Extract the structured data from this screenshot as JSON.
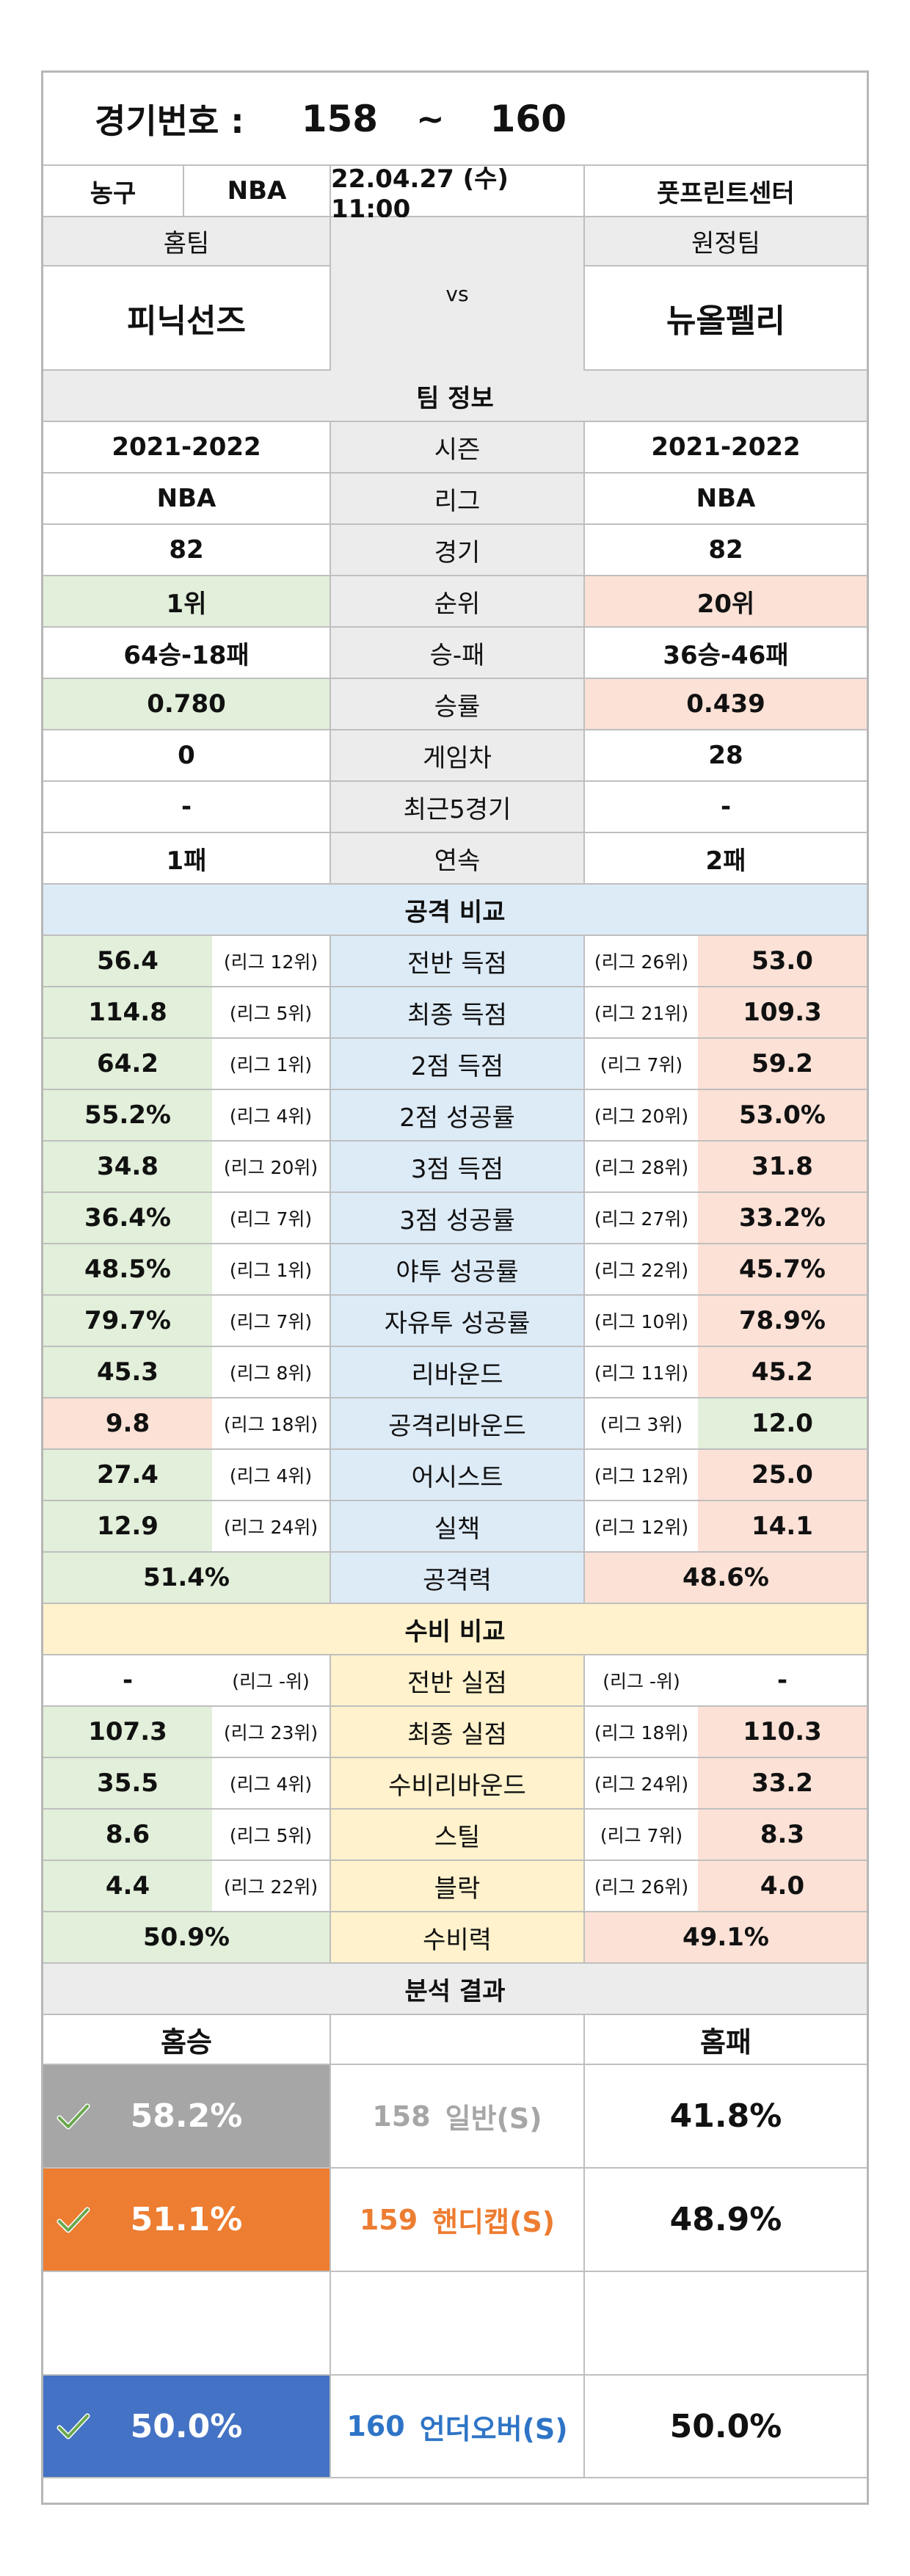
{
  "header": {
    "match_label": "경기번호 :",
    "match_from": "158",
    "match_sep": "~",
    "match_to": "160"
  },
  "info": {
    "sport": "농구",
    "league": "NBA",
    "datetime": "22.04.27 (수) 11:00",
    "venue": "풋프린트센터"
  },
  "teams": {
    "home_label": "홈팀",
    "away_label": "원정팀",
    "home_name": "피닉선즈",
    "away_name": "뉴올펠리",
    "vs": "vs"
  },
  "team_info": {
    "title": "팀 정보",
    "rows": [
      {
        "home": "2021-2022",
        "label": "시즌",
        "away": "2021-2022"
      },
      {
        "home": "NBA",
        "label": "리그",
        "away": "NBA"
      },
      {
        "home": "82",
        "label": "경기",
        "away": "82"
      },
      {
        "home": "1위",
        "label": "순위",
        "away": "20위",
        "home_status": "good",
        "away_status": "bad"
      },
      {
        "home": "64승-18패",
        "label": "승-패",
        "away": "36승-46패"
      },
      {
        "home": "0.780",
        "label": "승률",
        "away": "0.439",
        "home_status": "good",
        "away_status": "bad"
      },
      {
        "home": "0",
        "label": "게임차",
        "away": "28"
      },
      {
        "home": "-",
        "label": "최근5경기",
        "away": "-"
      },
      {
        "home": "1패",
        "label": "연속",
        "away": "2패"
      }
    ]
  },
  "attack": {
    "title": "공격 비교",
    "rows": [
      {
        "home": "56.4",
        "home_rank": "(리그 12위)",
        "label": "전반 득점",
        "away_rank": "(리그 26위)",
        "away": "53.0",
        "home_status": "good",
        "away_status": "bad"
      },
      {
        "home": "114.8",
        "home_rank": "(리그 5위)",
        "label": "최종 득점",
        "away_rank": "(리그 21위)",
        "away": "109.3",
        "home_status": "good",
        "away_status": "bad"
      },
      {
        "home": "64.2",
        "home_rank": "(리그 1위)",
        "label": "2점 득점",
        "away_rank": "(리그 7위)",
        "away": "59.2",
        "home_status": "good",
        "away_status": "bad"
      },
      {
        "home": "55.2%",
        "home_rank": "(리그 4위)",
        "label": "2점 성공률",
        "away_rank": "(리그 20위)",
        "away": "53.0%",
        "home_status": "good",
        "away_status": "bad"
      },
      {
        "home": "34.8",
        "home_rank": "(리그 20위)",
        "label": "3점 득점",
        "away_rank": "(리그 28위)",
        "away": "31.8",
        "home_status": "good",
        "away_status": "bad"
      },
      {
        "home": "36.4%",
        "home_rank": "(리그 7위)",
        "label": "3점 성공률",
        "away_rank": "(리그 27위)",
        "away": "33.2%",
        "home_status": "good",
        "away_status": "bad"
      },
      {
        "home": "48.5%",
        "home_rank": "(리그 1위)",
        "label": "야투 성공률",
        "away_rank": "(리그 22위)",
        "away": "45.7%",
        "home_status": "good",
        "away_status": "bad"
      },
      {
        "home": "79.7%",
        "home_rank": "(리그 7위)",
        "label": "자유투 성공률",
        "away_rank": "(리그 10위)",
        "away": "78.9%",
        "home_status": "good",
        "away_status": "bad"
      },
      {
        "home": "45.3",
        "home_rank": "(리그 8위)",
        "label": "리바운드",
        "away_rank": "(리그 11위)",
        "away": "45.2",
        "home_status": "good",
        "away_status": "bad"
      },
      {
        "home": "9.8",
        "home_rank": "(리그 18위)",
        "label": "공격리바운드",
        "away_rank": "(리그 3위)",
        "away": "12.0",
        "home_status": "bad",
        "away_status": "good"
      },
      {
        "home": "27.4",
        "home_rank": "(리그 4위)",
        "label": "어시스트",
        "away_rank": "(리그 12위)",
        "away": "25.0",
        "home_status": "good",
        "away_status": "bad"
      },
      {
        "home": "12.9",
        "home_rank": "(리그 24위)",
        "label": "실책",
        "away_rank": "(리그 12위)",
        "away": "14.1",
        "home_status": "good",
        "away_status": "bad"
      }
    ],
    "total": {
      "home": "51.4%",
      "label": "공격력",
      "away": "48.6%",
      "home_status": "good",
      "away_status": "bad"
    }
  },
  "defense": {
    "title": "수비 비교",
    "rows": [
      {
        "home": "-",
        "home_rank": "(리그 -위)",
        "label": "전반 실점",
        "away_rank": "(리그 -위)",
        "away": "-",
        "home_status": "none",
        "away_status": "none"
      },
      {
        "home": "107.3",
        "home_rank": "(리그 23위)",
        "label": "최종 실점",
        "away_rank": "(리그 18위)",
        "away": "110.3",
        "home_status": "good",
        "away_status": "bad"
      },
      {
        "home": "35.5",
        "home_rank": "(리그 4위)",
        "label": "수비리바운드",
        "away_rank": "(리그 24위)",
        "away": "33.2",
        "home_status": "good",
        "away_status": "bad"
      },
      {
        "home": "8.6",
        "home_rank": "(리그 5위)",
        "label": "스틸",
        "away_rank": "(리그 7위)",
        "away": "8.3",
        "home_status": "good",
        "away_status": "bad"
      },
      {
        "home": "4.4",
        "home_rank": "(리그 22위)",
        "label": "블락",
        "away_rank": "(리그 26위)",
        "away": "4.0",
        "home_status": "good",
        "away_status": "bad"
      }
    ],
    "total": {
      "home": "50.9%",
      "label": "수비력",
      "away": "49.1%",
      "home_status": "good",
      "away_status": "bad"
    }
  },
  "analysis": {
    "title": "분석 결과",
    "col_home": "홈승",
    "col_away": "홈패",
    "rows": [
      {
        "home": "58.2%",
        "num": "158",
        "name": "일반(S)",
        "away": "41.8%",
        "bg": "#a6a6a6",
        "label_color": "#a6a6a6"
      },
      {
        "home": "51.1%",
        "num": "159",
        "name": "핸디캡(S)",
        "away": "48.9%",
        "bg": "#ed7d31",
        "label_color": "#ed7d31"
      },
      {
        "home": "",
        "num": "",
        "name": "",
        "away": "",
        "bg": "#ffffff",
        "label_color": "#ffffff"
      },
      {
        "home": "50.0%",
        "num": "160",
        "name": "언더오버(S)",
        "away": "50.0%",
        "bg": "#4472c4",
        "label_color": "#2e74c6"
      }
    ]
  },
  "colors": {
    "good_dot": "#5b9e7f",
    "bad_dot": "#e15a36",
    "good_bg": "#e2efda",
    "bad_bg": "#fbe1d6",
    "attack_bg": "#ddebf7",
    "defense_bg": "#fff2cc",
    "header_gray": "#ececec"
  },
  "icons": {
    "check": "check-icon",
    "good_marker": "green-circle-icon",
    "bad_marker": "red-circle-icon"
  }
}
